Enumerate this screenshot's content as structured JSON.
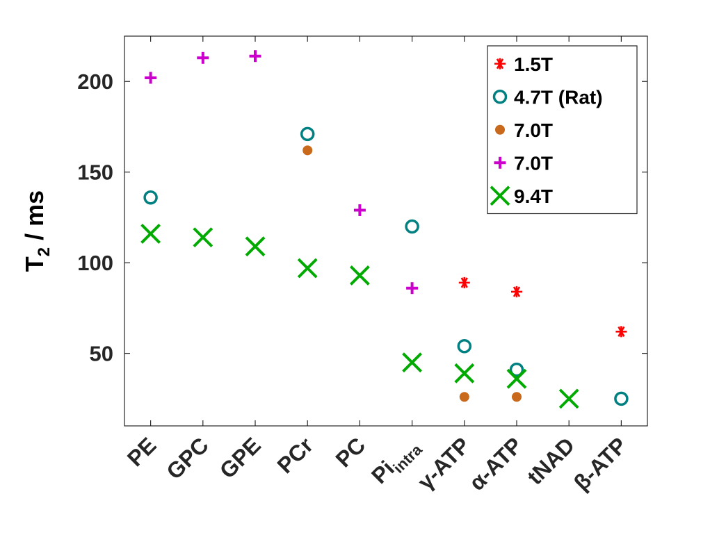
{
  "chart_data": {
    "type": "scatter",
    "categories": [
      "PE",
      "GPC",
      "GPE",
      "PCr",
      "PC",
      "Pi_intra",
      "γ-ATP",
      "α-ATP",
      "tNAD",
      "β-ATP"
    ],
    "category_labels": [
      {
        "main": "PE",
        "sub": ""
      },
      {
        "main": "GPC",
        "sub": ""
      },
      {
        "main": "GPE",
        "sub": ""
      },
      {
        "main": "PCr",
        "sub": ""
      },
      {
        "main": "PC",
        "sub": ""
      },
      {
        "main": "Pi",
        "sub": "intra"
      },
      {
        "main": "γ-ATP",
        "sub": ""
      },
      {
        "main": "α-ATP",
        "sub": ""
      },
      {
        "main": "tNAD",
        "sub": ""
      },
      {
        "main": "β-ATP",
        "sub": ""
      }
    ],
    "ylabel": {
      "main": "T",
      "sub": "2",
      "rest": " / ms"
    },
    "ylim": [
      10,
      225
    ],
    "yticks": [
      50,
      100,
      150,
      200
    ],
    "grid": false,
    "legend_position": "top-right",
    "series": [
      {
        "name": "1.5T",
        "marker": "asterisk",
        "color": "#ff0000",
        "values": [
          null,
          null,
          null,
          null,
          null,
          null,
          89,
          84,
          null,
          62
        ]
      },
      {
        "name": "4.7T (Rat)",
        "marker": "circle",
        "color": "#008080",
        "values": [
          136,
          null,
          null,
          171,
          null,
          120,
          54,
          41,
          null,
          25
        ]
      },
      {
        "name": "7.0T",
        "marker": "dot",
        "color": "#c8691b",
        "values": [
          null,
          null,
          null,
          162,
          null,
          null,
          26,
          26,
          null,
          null
        ]
      },
      {
        "name": "7.0T",
        "marker": "plus",
        "color": "#cc00cc",
        "values": [
          202,
          213,
          214,
          null,
          129,
          86,
          null,
          null,
          null,
          null
        ]
      },
      {
        "name": "9.4T",
        "marker": "x",
        "color": "#00aa00",
        "values": [
          116,
          114,
          109,
          97,
          93,
          45,
          39,
          36,
          25,
          null
        ]
      }
    ]
  }
}
